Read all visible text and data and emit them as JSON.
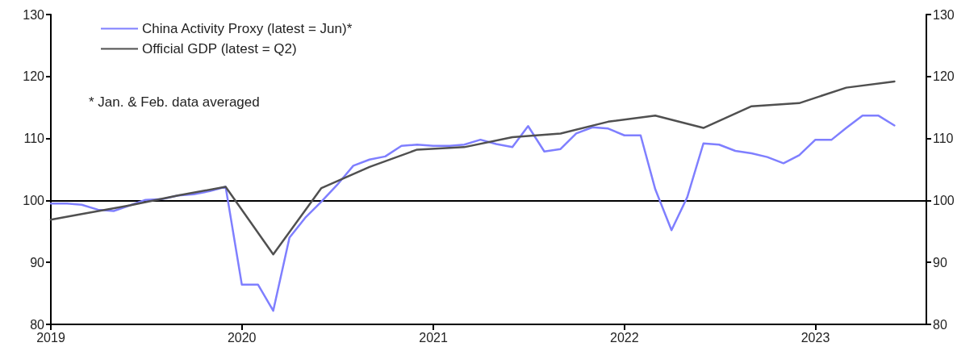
{
  "chart_data": {
    "type": "line",
    "legend": "top left",
    "grid": false,
    "marker": "none",
    "line_style": "solid",
    "xlim": [
      "2019-01",
      "2023-08"
    ],
    "xticks": [
      "2019",
      "2020",
      "2021",
      "2022",
      "2023"
    ],
    "ylim": [
      80,
      130
    ],
    "yticks": [
      80,
      90,
      100,
      110,
      120,
      130
    ],
    "y2lim": [
      80,
      130
    ],
    "y2ticks": [
      80,
      90,
      100,
      110,
      120,
      130
    ],
    "ref_lines": [
      {
        "axis": "y",
        "value": 100,
        "color": "#000000",
        "line_style": "solid"
      }
    ],
    "annotations": [
      "* Jan. & Feb. data averaged"
    ],
    "series": [
      {
        "name": "China Activity Proxy (latest = Jun)*",
        "color": "#7f7fff",
        "x": [
          "2019-01",
          "2019-02",
          "2019-03",
          "2019-04",
          "2019-05",
          "2019-06",
          "2019-07",
          "2019-08",
          "2019-09",
          "2019-10",
          "2019-11",
          "2019-12",
          "2020-01",
          "2020-02",
          "2020-03",
          "2020-04",
          "2020-05",
          "2020-06",
          "2020-07",
          "2020-08",
          "2020-09",
          "2020-10",
          "2020-11",
          "2020-12",
          "2021-01",
          "2021-02",
          "2021-03",
          "2021-04",
          "2021-05",
          "2021-06",
          "2021-07",
          "2021-08",
          "2021-09",
          "2021-10",
          "2021-11",
          "2021-12",
          "2022-01",
          "2022-02",
          "2022-03",
          "2022-04",
          "2022-05",
          "2022-06",
          "2022-07",
          "2022-08",
          "2022-09",
          "2022-10",
          "2022-11",
          "2022-12",
          "2023-01",
          "2023-02",
          "2023-03",
          "2023-04",
          "2023-05",
          "2023-06"
        ],
        "values": [
          99.5,
          99.5,
          99.3,
          98.5,
          98.3,
          99.2,
          100.1,
          100.2,
          100.8,
          101.0,
          101.5,
          102.2,
          86.4,
          86.4,
          82.2,
          94.0,
          97.2,
          99.8,
          102.5,
          105.6,
          106.6,
          107.1,
          108.8,
          109.0,
          108.8,
          108.8,
          109.0,
          109.8,
          109.1,
          108.6,
          112.0,
          107.9,
          108.3,
          110.8,
          111.8,
          111.6,
          110.5,
          110.5,
          101.8,
          95.2,
          100.5,
          109.2,
          109.0,
          108.0,
          107.6,
          107.0,
          106.0,
          107.3,
          109.8,
          109.8,
          111.7,
          113.7,
          113.7,
          112.1
        ]
      },
      {
        "name": "Official GDP (latest = Q2)",
        "color": "#505050",
        "x": [
          "2019-01",
          "2019-03",
          "2019-06",
          "2019-09",
          "2019-12",
          "2020-03",
          "2020-06",
          "2020-09",
          "2020-12",
          "2021-03",
          "2021-06",
          "2021-09",
          "2021-12",
          "2022-03",
          "2022-06",
          "2022-09",
          "2022-12",
          "2023-03",
          "2023-06"
        ],
        "values": [
          96.9,
          97.8,
          99.2,
          100.8,
          102.2,
          91.3,
          102.0,
          105.4,
          108.2,
          108.6,
          110.2,
          110.8,
          112.7,
          113.7,
          111.7,
          115.2,
          115.7,
          118.2,
          119.2
        ]
      }
    ]
  }
}
